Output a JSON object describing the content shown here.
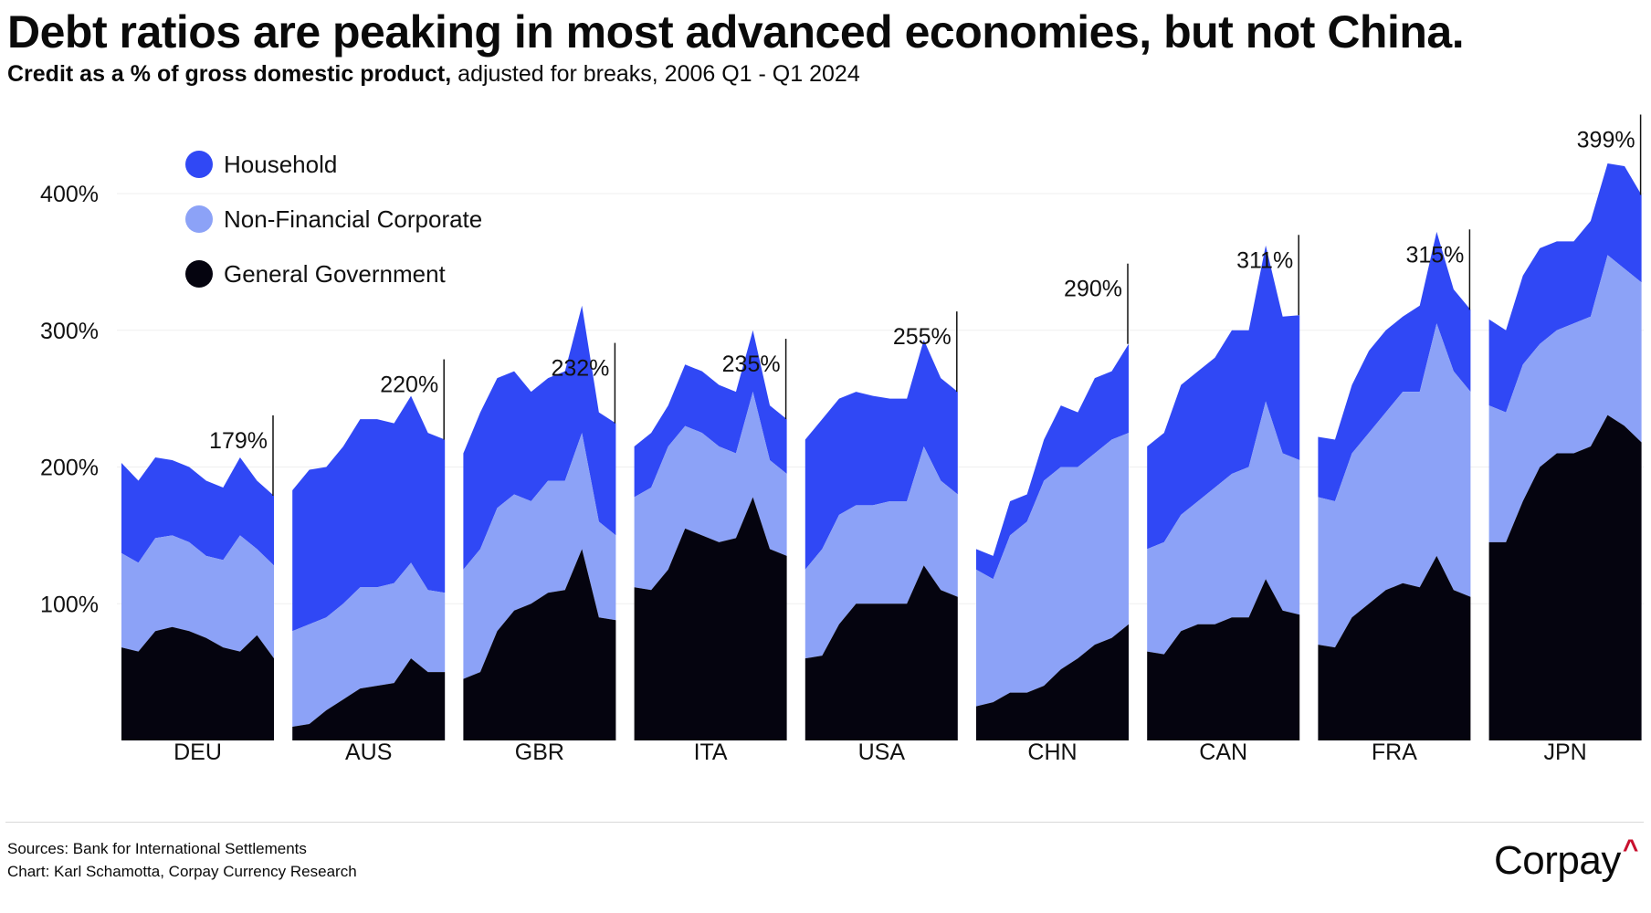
{
  "title": "Debt ratios are peaking in most advanced economies, but not China.",
  "subtitle_bold": "Credit as a % of gross domestic product,",
  "subtitle_rest": " adjusted for breaks, 2006 Q1 - Q1 2024",
  "footer": {
    "sources": "Sources: Bank for International Settlements",
    "chart_credit": "Chart: Karl Schamotta, Corpay Currency Research"
  },
  "logo": {
    "text": "Corpay",
    "mark": "^"
  },
  "colors": {
    "household": "#3048F5",
    "corporate": "#8CA2F7",
    "government": "#05040F"
  },
  "chart_data": {
    "type": "area",
    "title": "Debt ratios are peaking in most advanced economies, but not China.",
    "xlabel": "",
    "ylabel": "Credit as a % of GDP",
    "ylim": [
      0,
      400
    ],
    "yticks": [
      100,
      200,
      300,
      400
    ],
    "ytick_labels": [
      "100%",
      "200%",
      "300%",
      "400%"
    ],
    "grid": true,
    "legend_position": "top-left",
    "period": "2006 Q1 - 2024 Q1",
    "legend": [
      "Household",
      "Non-Financial Corporate",
      "General Government"
    ],
    "stack_order": [
      "government",
      "corporate",
      "household"
    ],
    "countries": [
      {
        "code": "DEU",
        "latest_label": "179%",
        "government": [
          68,
          65,
          80,
          83,
          80,
          75,
          68,
          65,
          77,
          60
        ],
        "corporate": [
          69,
          65,
          68,
          67,
          65,
          60,
          64,
          85,
          63,
          68
        ],
        "household": [
          66,
          60,
          59,
          55,
          55,
          55,
          53,
          57,
          50,
          51
        ]
      },
      {
        "code": "AUS",
        "latest_label": "220%",
        "government": [
          10,
          12,
          22,
          30,
          38,
          40,
          42,
          60,
          50,
          50
        ],
        "corporate": [
          70,
          73,
          68,
          70,
          74,
          72,
          73,
          70,
          60,
          58
        ],
        "household": [
          103,
          113,
          110,
          115,
          123,
          123,
          117,
          122,
          115,
          112
        ]
      },
      {
        "code": "GBR",
        "latest_label": "232%",
        "government": [
          45,
          50,
          80,
          95,
          100,
          108,
          110,
          140,
          90,
          88
        ],
        "corporate": [
          80,
          90,
          90,
          85,
          75,
          82,
          80,
          85,
          70,
          62
        ],
        "household": [
          85,
          100,
          95,
          90,
          80,
          75,
          80,
          93,
          80,
          82
        ]
      },
      {
        "code": "ITA",
        "latest_label": "235%",
        "government": [
          112,
          110,
          125,
          155,
          150,
          145,
          148,
          178,
          140,
          135
        ],
        "corporate": [
          66,
          75,
          90,
          75,
          75,
          70,
          62,
          77,
          65,
          60
        ],
        "household": [
          37,
          40,
          30,
          45,
          45,
          45,
          45,
          45,
          40,
          40
        ]
      },
      {
        "code": "USA",
        "latest_label": "255%",
        "government": [
          60,
          62,
          85,
          100,
          100,
          100,
          100,
          128,
          110,
          105
        ],
        "corporate": [
          65,
          78,
          80,
          72,
          72,
          75,
          75,
          87,
          80,
          75
        ],
        "household": [
          95,
          95,
          85,
          83,
          80,
          75,
          75,
          78,
          75,
          75
        ]
      },
      {
        "code": "CHN",
        "latest_label": "290%",
        "government": [
          25,
          28,
          35,
          35,
          40,
          52,
          60,
          70,
          75,
          85
        ],
        "corporate": [
          100,
          90,
          115,
          125,
          150,
          148,
          140,
          140,
          145,
          140
        ],
        "household": [
          15,
          17,
          25,
          20,
          30,
          45,
          40,
          55,
          50,
          65
        ]
      },
      {
        "code": "CAN",
        "latest_label": "311%",
        "government": [
          65,
          63,
          80,
          85,
          85,
          90,
          90,
          118,
          95,
          92
        ],
        "corporate": [
          75,
          82,
          85,
          90,
          100,
          105,
          110,
          130,
          115,
          113
        ],
        "household": [
          75,
          80,
          95,
          95,
          95,
          105,
          100,
          114,
          100,
          106
        ]
      },
      {
        "code": "FRA",
        "latest_label": "315%",
        "government": [
          70,
          68,
          90,
          100,
          110,
          115,
          112,
          135,
          110,
          105
        ],
        "corporate": [
          108,
          107,
          120,
          125,
          130,
          140,
          143,
          170,
          160,
          150
        ],
        "household": [
          44,
          45,
          50,
          60,
          60,
          55,
          63,
          67,
          60,
          60
        ]
      },
      {
        "code": "JPN",
        "latest_label": "399%",
        "government": [
          145,
          145,
          175,
          200,
          210,
          210,
          215,
          238,
          230,
          218
        ],
        "corporate": [
          100,
          95,
          100,
          90,
          90,
          95,
          95,
          117,
          115,
          117
        ],
        "household": [
          63,
          60,
          65,
          70,
          65,
          60,
          70,
          67,
          75,
          64
        ]
      }
    ]
  }
}
